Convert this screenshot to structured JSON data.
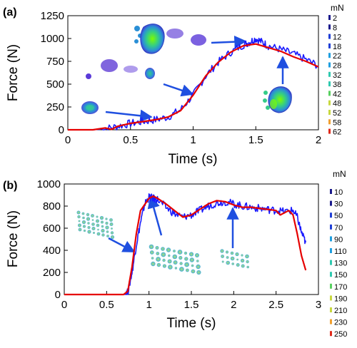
{
  "chart_data": [
    {
      "type": "line",
      "panel_label": "(a)",
      "xlabel": "Time (s)",
      "ylabel": "Force (N)",
      "xlim": [
        0,
        2
      ],
      "ylim": [
        0,
        1250
      ],
      "xticks": [
        "0",
        "0.5",
        "1",
        "1.5",
        "2"
      ],
      "yticks": [
        "0",
        "250",
        "500",
        "750",
        "1000",
        "1250"
      ],
      "series": [
        {
          "color": "#1a1aff",
          "style": "noisy-measured",
          "x": [
            0,
            0.2,
            0.3,
            0.4,
            0.5,
            0.6,
            0.7,
            0.8,
            0.9,
            1.0,
            1.1,
            1.2,
            1.3,
            1.4,
            1.45,
            1.5,
            1.55,
            1.6,
            1.7,
            1.8,
            1.9,
            2.0
          ],
          "y": [
            0,
            0,
            10,
            40,
            70,
            90,
            110,
            140,
            220,
            380,
            590,
            740,
            850,
            930,
            960,
            1000,
            960,
            920,
            880,
            830,
            770,
            700
          ]
        },
        {
          "color": "#e60000",
          "style": "smooth-fit",
          "x": [
            0,
            0.2,
            0.3,
            0.35,
            0.4,
            0.5,
            0.6,
            0.7,
            0.8,
            0.9,
            1.0,
            1.1,
            1.2,
            1.3,
            1.4,
            1.5,
            1.6,
            1.7,
            1.8,
            1.9,
            2.0
          ],
          "y": [
            0,
            0,
            20,
            5,
            40,
            70,
            90,
            110,
            140,
            210,
            380,
            590,
            740,
            850,
            920,
            940,
            900,
            860,
            800,
            750,
            690
          ]
        }
      ],
      "annotations": [
        "footprint-0.2s",
        "footprint-0.7s",
        "footprint-1.0s",
        "footprint-1.5s",
        "footprint-1.7s"
      ],
      "colorbar": {
        "unit": "mN",
        "labels": [
          "2",
          "8",
          "12",
          "18",
          "22",
          "28",
          "32",
          "38",
          "42",
          "48",
          "52",
          "58",
          "62"
        ]
      }
    },
    {
      "type": "line",
      "panel_label": "(b)",
      "xlabel": "Time (s)",
      "ylabel": "Force (N)",
      "xlim": [
        0,
        3
      ],
      "ylim": [
        0,
        1000
      ],
      "xticks": [
        "0",
        "0.5",
        "1",
        "1.5",
        "2",
        "2.5",
        "3"
      ],
      "yticks": [
        "0",
        "200",
        "400",
        "600",
        "800",
        "1000"
      ],
      "series": [
        {
          "color": "#1a1aff",
          "style": "noisy-measured",
          "x": [
            0,
            0.7,
            0.75,
            0.8,
            0.85,
            0.9,
            0.95,
            1.0,
            1.05,
            1.1,
            1.2,
            1.3,
            1.4,
            1.5,
            1.6,
            1.7,
            1.8,
            1.9,
            2.0,
            2.1,
            2.2,
            2.3,
            2.4,
            2.5,
            2.6,
            2.7,
            2.75,
            2.8,
            2.85
          ],
          "y": [
            0,
            0,
            20,
            200,
            450,
            650,
            820,
            880,
            870,
            860,
            790,
            730,
            700,
            720,
            760,
            800,
            830,
            840,
            820,
            800,
            790,
            780,
            770,
            760,
            750,
            760,
            700,
            560,
            470
          ]
        },
        {
          "color": "#e60000",
          "style": "smooth-fit",
          "x": [
            0,
            0.7,
            0.75,
            0.8,
            0.85,
            0.9,
            1.0,
            1.05,
            1.1,
            1.2,
            1.3,
            1.4,
            1.5,
            1.6,
            1.7,
            1.8,
            1.9,
            2.0,
            2.1,
            2.2,
            2.3,
            2.4,
            2.5,
            2.55,
            2.6,
            2.65,
            2.7,
            2.75,
            2.8,
            2.85
          ],
          "y": [
            0,
            0,
            30,
            250,
            550,
            760,
            870,
            890,
            870,
            820,
            760,
            700,
            720,
            770,
            820,
            850,
            840,
            810,
            790,
            790,
            780,
            770,
            760,
            720,
            740,
            760,
            720,
            550,
            350,
            220
          ]
        }
      ],
      "annotations": [
        "pressure-map-0.8s",
        "pressure-map-1.0s",
        "pressure-map-2.0s"
      ],
      "colorbar": {
        "unit": "mN",
        "labels": [
          "10",
          "30",
          "50",
          "70",
          "90",
          "110",
          "130",
          "150",
          "170",
          "190",
          "210",
          "230",
          "250"
        ]
      }
    }
  ],
  "colors": {
    "measured": "#1a1aff",
    "fit": "#e60000",
    "arrow": "#1f4fe0"
  }
}
